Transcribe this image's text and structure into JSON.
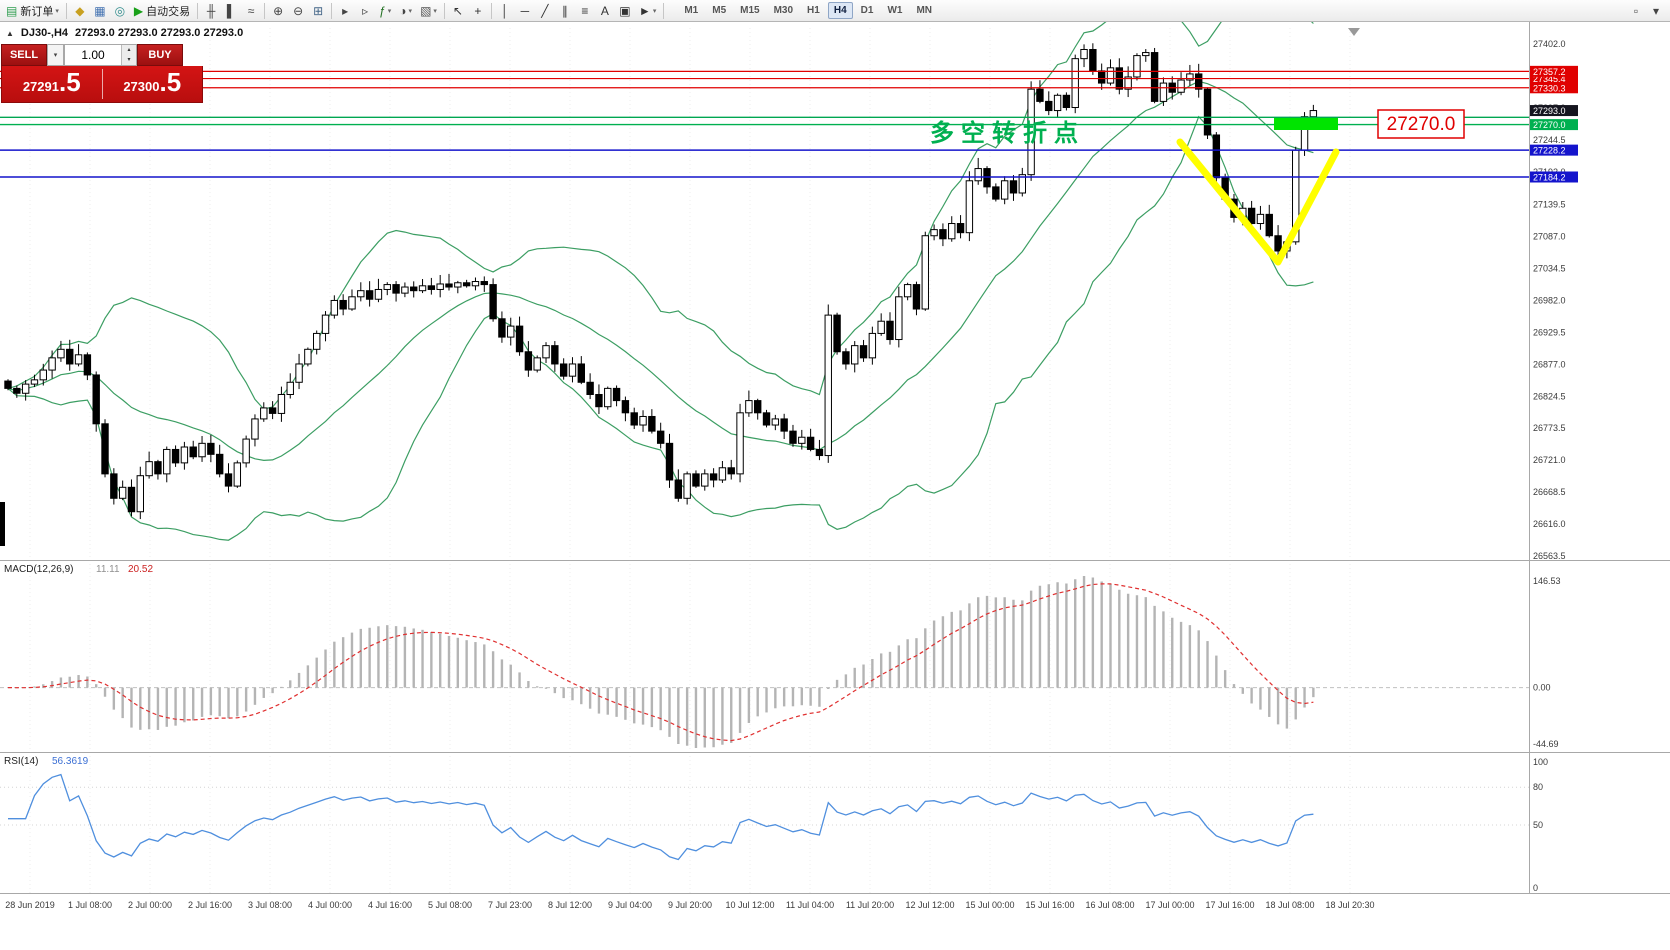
{
  "icons": {
    "caret_down": "▾",
    "spin_up": "▴",
    "spin_down": "▾",
    "symbol_caret": "▲"
  },
  "toolbar": {
    "items": [
      {
        "type": "labelbtn",
        "name": "new-order-button",
        "glyph": "▤",
        "glyph_color": "#2e9e4f",
        "label": "新订单",
        "caret": true
      },
      {
        "type": "sep"
      },
      {
        "type": "btn",
        "name": "history-center-icon-button",
        "glyph": "◆",
        "glyph_color": "#c8a020"
      },
      {
        "type": "btn",
        "name": "market-watch-icon-button",
        "glyph": "▦",
        "glyph_color": "#4070b0"
      },
      {
        "type": "btn",
        "name": "web-request-icon-button",
        "glyph": "◎",
        "glyph_color": "#2e8b8b"
      },
      {
        "type": "labelbtn",
        "name": "auto-trading-button",
        "glyph": "▶",
        "glyph_color": "#18a018",
        "label": "自动交易"
      },
      {
        "type": "sep"
      },
      {
        "type": "btn",
        "name": "bar-chart-icon-button",
        "glyph": "╫",
        "glyph_color": "#444444"
      },
      {
        "type": "btn",
        "name": "candlestick-chart-icon-button",
        "glyph": "▌",
        "glyph_color": "#444444"
      },
      {
        "type": "btn",
        "name": "line-chart-icon-button",
        "glyph": "≈",
        "glyph_color": "#444444"
      },
      {
        "type": "sep"
      },
      {
        "type": "btn",
        "name": "zoom-in-icon-button",
        "glyph": "⊕",
        "glyph_color": "#444444"
      },
      {
        "type": "btn",
        "name": "zoom-out-icon-button",
        "glyph": "⊖",
        "glyph_color": "#444444"
      },
      {
        "type": "btn",
        "name": "tile-windows-icon-button",
        "glyph": "⊞",
        "glyph_color": "#446688"
      },
      {
        "type": "sep"
      },
      {
        "type": "btn",
        "name": "auto-scroll-icon-button",
        "glyph": "▸",
        "glyph_color": "#444444"
      },
      {
        "type": "btn",
        "name": "chart-shift-icon-button",
        "glyph": "▹",
        "glyph_color": "#444444"
      },
      {
        "type": "btn",
        "name": "indicators-icon-button",
        "glyph": "ƒ",
        "glyph_color": "#207020",
        "caret": true
      },
      {
        "type": "btn",
        "name": "periods-icon-button",
        "glyph": "◑",
        "glyph_color": "#444444",
        "caret": true
      },
      {
        "type": "btn",
        "name": "templates-icon-button",
        "glyph": "▧",
        "glyph_color": "#555555",
        "caret": true
      },
      {
        "type": "sep"
      },
      {
        "type": "btn",
        "name": "cursor-icon-button",
        "glyph": "↖",
        "glyph_color": "#333333"
      },
      {
        "type": "btn",
        "name": "crosshair-icon-button",
        "glyph": "+",
        "glyph_color": "#333333"
      },
      {
        "type": "sep"
      },
      {
        "type": "btn",
        "name": "vertical-line-icon-button",
        "glyph": "│",
        "glyph_color": "#333333"
      },
      {
        "type": "btn",
        "name": "horizontal-line-icon-button",
        "glyph": "─",
        "glyph_color": "#333333"
      },
      {
        "type": "btn",
        "name": "trendline-icon-button",
        "glyph": "╱",
        "glyph_color": "#333333"
      },
      {
        "type": "btn",
        "name": "channel-icon-button",
        "glyph": "∥",
        "glyph_color": "#333333"
      },
      {
        "type": "btn",
        "name": "fibonacci-icon-button",
        "glyph": "≡",
        "glyph_color": "#333333"
      },
      {
        "type": "btn",
        "name": "text-icon-button",
        "glyph": "A",
        "glyph_color": "#333333"
      },
      {
        "type": "btn",
        "name": "label-icon-button",
        "glyph": "▣",
        "glyph_color": "#333333"
      },
      {
        "type": "btn",
        "name": "arrows-icon-button",
        "glyph": "►",
        "glyph_color": "#333333",
        "caret": true
      },
      {
        "type": "sep"
      }
    ],
    "timeframes": [
      "M1",
      "M5",
      "M15",
      "M30",
      "H1",
      "H4",
      "D1",
      "W1",
      "MN"
    ],
    "active_timeframe": "H4",
    "right_items": [
      {
        "name": "chart-search-icon-button",
        "glyph": "▫"
      },
      {
        "name": "toolbar-overflow-icon-button",
        "glyph": "▾"
      }
    ]
  },
  "symbol_header": {
    "symbol": "DJ30-,H4",
    "ohlc_text": "27293.0 27293.0 27293.0 27293.0"
  },
  "trade_panel": {
    "sell_label": "SELL",
    "buy_label": "BUY",
    "volume": "1.00",
    "sell_price": "27291",
    "sell_price_fraction": ".5",
    "buy_price": "27300",
    "buy_price_fraction": ".5"
  },
  "levels": {
    "resistance_lines": [
      {
        "price": 27357.2,
        "label": "27357.2",
        "color": "#e00000"
      },
      {
        "price": 27345.4,
        "label": "27345.4",
        "color": "#e00000"
      },
      {
        "price": 27330.3,
        "label": "27330.3",
        "color": "#e00000"
      }
    ],
    "pivot_lines": [
      {
        "price": 27282.0,
        "label": null,
        "color": "#00a651"
      },
      {
        "price": 27270.0,
        "label": "27270.0",
        "color": "#00b050"
      }
    ],
    "support_lines": [
      {
        "price": 27228.2,
        "label": "27228.2",
        "color": "#1414cc"
      },
      {
        "price": 27184.2,
        "label": "27184.2",
        "color": "#1414cc"
      }
    ],
    "current_price": {
      "price": 27293.0,
      "label": "27293.0",
      "color": "#15151f"
    }
  },
  "annotations": {
    "turning_point_text": "多空转折点",
    "turning_point_color": "#00b050",
    "price_callout": "27270.0",
    "callout_color": "#e00000",
    "highlight_color": "#00e400",
    "vshape_color": "#ffff00"
  },
  "axis": {
    "price_ticks": [
      "27402.0",
      "27349.5",
      "27297.0",
      "27244.5",
      "27192.0",
      "27139.5",
      "27087.0",
      "27034.5",
      "26982.0",
      "26929.5",
      "26877.0",
      "26824.5",
      "26773.5",
      "26721.0",
      "26668.5",
      "26616.0",
      "26563.5"
    ],
    "time_labels": [
      "28 Jun 2019",
      "1 Jul 08:00",
      "2 Jul 00:00",
      "2 Jul 16:00",
      "3 Jul 08:00",
      "4 Jul 00:00",
      "4 Jul 16:00",
      "5 Jul 08:00",
      "7 Jul 23:00",
      "8 Jul 12:00",
      "9 Jul 04:00",
      "9 Jul 20:00",
      "10 Jul 12:00",
      "11 Jul 04:00",
      "11 Jul 20:00",
      "12 Jul 12:00",
      "15 Jul 00:00",
      "15 Jul 16:00",
      "16 Jul 08:00",
      "17 Jul 00:00",
      "17 Jul 16:00",
      "18 Jul 08:00",
      "18 Jul 20:30"
    ]
  },
  "macd": {
    "title": "MACD(12,26,9)",
    "value_main": "11.11",
    "value_signal": "20.52",
    "scale_top": "146.53",
    "scale_zero": "0.00",
    "scale_bottom": "-44.69"
  },
  "rsi": {
    "title": "RSI(14)",
    "value": "56.3619",
    "scale": [
      "100",
      "80",
      "50",
      "0"
    ]
  },
  "chart_data": {
    "type": "candlestick",
    "symbol": "DJ30-",
    "timeframe": "H4",
    "price_axis_max": 27402.0,
    "price_axis_min": 26563.5,
    "indicators": [
      "Bollinger Bands(20,2)",
      "MACD(12,26,9)",
      "RSI(14)"
    ],
    "closes": [
      26838,
      26830,
      26845,
      26852,
      26868,
      26888,
      26902,
      26878,
      26893,
      26860,
      26780,
      26698,
      26658,
      26676,
      26636,
      26695,
      26718,
      26698,
      26738,
      26716,
      26742,
      26726,
      26748,
      26730,
      26698,
      26678,
      26716,
      26755,
      26788,
      26806,
      26797,
      26828,
      26848,
      26878,
      26902,
      26928,
      26958,
      26982,
      26968,
      26988,
      26998,
      26984,
      27000,
      27008,
      26994,
      27004,
      26998,
      27006,
      27000,
      27009,
      27004,
      27011,
      27006,
      27013,
      27008,
      26952,
      26922,
      26940,
      26898,
      26868,
      26888,
      26908,
      26878,
      26858,
      26878,
      26848,
      26828,
      26808,
      26838,
      26818,
      26798,
      26778,
      26792,
      26768,
      26748,
      26688,
      26658,
      26698,
      26678,
      26698,
      26688,
      26708,
      26698,
      26798,
      26818,
      26798,
      26778,
      26788,
      26768,
      26748,
      26758,
      26738,
      26728,
      26958,
      26898,
      26878,
      26908,
      26888,
      26928,
      26948,
      26918,
      26988,
      27008,
      26968,
      27088,
      27098,
      27083,
      27108,
      27093,
      27178,
      27198,
      27168,
      27148,
      27178,
      27158,
      27188,
      27328,
      27308,
      27293,
      27318,
      27298,
      27378,
      27393,
      27358,
      27338,
      27363,
      27328,
      27348,
      27383,
      27388,
      27308,
      27338,
      27323,
      27343,
      27353,
      27328,
      27253,
      27183,
      27148,
      27118,
      27133,
      27108,
      27123,
      27088,
      27063,
      27078,
      27228,
      27283,
      27293
    ]
  },
  "colors": {
    "bull_candle": "#ffffff",
    "bear_candle": "#000000",
    "bollinger": "#3c9e63",
    "macd_histogram": "#b4b4b4",
    "macd_signal": "#e03030",
    "rsi_line": "#4f8fde",
    "grid": "#ececec",
    "axis_text": "#3a3a3a",
    "panel_border": "#a8a8a8",
    "trade_red": "#cc0000"
  }
}
